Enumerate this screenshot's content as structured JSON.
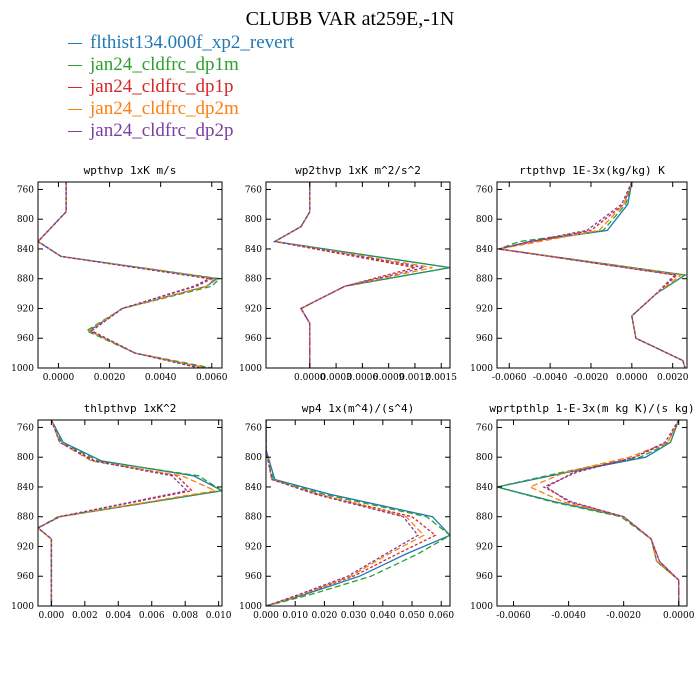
{
  "title": "CLUBB VAR at259E,-1N",
  "legend": [
    {
      "name": "flthist134.000f_xp2_revert",
      "color": "#1f77b4"
    },
    {
      "name": "jan24_cldfrc_dp1m",
      "color": "#2ca02c"
    },
    {
      "name": "jan24_cldfrc_dp1p",
      "color": "#d62728"
    },
    {
      "name": "jan24_cldfrc_dp2m",
      "color": "#ff7f0e"
    },
    {
      "name": "jan24_cldfrc_dp2p",
      "color": "#7b3fa0"
    }
  ],
  "chart_data": [
    {
      "type": "line",
      "title": "wpthvp  1xK m/s",
      "xlim": [
        -0.0008,
        0.0064
      ],
      "ylim": [
        1000,
        750
      ],
      "xticks": [
        0.0,
        0.002,
        0.004,
        0.006
      ],
      "xticklabels": [
        "0.0000",
        "0.0020",
        "0.0040",
        "0.0060"
      ],
      "yticks": [
        760,
        800,
        840,
        880,
        920,
        960,
        1000
      ],
      "y": [
        750,
        790,
        830,
        850,
        880,
        890,
        920,
        950,
        980,
        1000
      ],
      "series": [
        {
          "values": [
            0.0003,
            0.0003,
            -0.0008,
            0.0001,
            0.0062,
            0.0058,
            0.0025,
            0.0012,
            0.003,
            0.0058
          ]
        },
        {
          "values": [
            0.0003,
            0.0003,
            -0.0008,
            0.0001,
            0.0063,
            0.006,
            0.0025,
            0.0011,
            0.003,
            0.006
          ]
        },
        {
          "values": [
            0.0003,
            0.0003,
            -0.0008,
            0.0001,
            0.006,
            0.0054,
            0.0025,
            0.0013,
            0.003,
            0.0056
          ]
        },
        {
          "values": [
            0.0003,
            0.0003,
            -0.0008,
            0.0001,
            0.0061,
            0.0058,
            0.0025,
            0.0012,
            0.003,
            0.0058
          ]
        },
        {
          "values": [
            0.0003,
            0.0003,
            -0.0008,
            0.0001,
            0.0059,
            0.0053,
            0.0025,
            0.0013,
            0.003,
            0.0055
          ]
        }
      ]
    },
    {
      "type": "line",
      "title": "wp2thvp  1xK m^2/s^2",
      "xlim": [
        -0.0005,
        0.0016
      ],
      "ylim": [
        1000,
        750
      ],
      "xticks": [
        0.0,
        0.0003,
        0.0006,
        0.0009,
        0.0012,
        0.0015
      ],
      "xticklabels": [
        "0.0000",
        "0.0003",
        "0.0006",
        "0.0009",
        "0.0012",
        "0.0015"
      ],
      "yticks": [
        760,
        800,
        840,
        880,
        920,
        960,
        1000
      ],
      "y": [
        750,
        790,
        810,
        830,
        865,
        890,
        920,
        940,
        1000
      ],
      "series": [
        {
          "values": [
            0.0,
            0.0,
            -0.0001,
            -0.0004,
            0.0016,
            0.0004,
            -0.0001,
            0.0,
            0.0
          ]
        },
        {
          "values": [
            0.0,
            0.0,
            -0.0001,
            -0.0004,
            0.0016,
            0.0004,
            -0.0001,
            0.0,
            0.0
          ]
        },
        {
          "values": [
            0.0,
            0.0,
            -0.0001,
            -0.0004,
            0.0012,
            0.0004,
            -0.0001,
            0.0,
            0.0
          ]
        },
        {
          "values": [
            0.0,
            0.0,
            -0.0001,
            -0.0004,
            0.0014,
            0.0004,
            -0.0001,
            0.0,
            0.0
          ]
        },
        {
          "values": [
            0.0,
            0.0,
            -0.0001,
            -0.0004,
            0.0013,
            0.0004,
            -0.0001,
            0.0,
            0.0
          ]
        }
      ]
    },
    {
      "type": "line",
      "title": "rtpthvp  1E-3x(kg/kg) K",
      "xlim": [
        -0.0066,
        0.0027
      ],
      "ylim": [
        1000,
        750
      ],
      "xticks": [
        -0.006,
        -0.004,
        -0.002,
        0.0,
        0.002
      ],
      "xticklabels": [
        "-0.0060",
        "-0.0040",
        "-0.0020",
        "0.0000",
        "0.0020"
      ],
      "yticks": [
        760,
        800,
        840,
        880,
        920,
        960,
        1000
      ],
      "y": [
        750,
        780,
        815,
        830,
        840,
        875,
        900,
        930,
        960,
        990,
        1000
      ],
      "series": [
        {
          "values": [
            0.0,
            -0.0002,
            -0.0012,
            -0.005,
            -0.0065,
            0.0026,
            0.0012,
            0.0,
            0.0002,
            0.0025,
            0.0026
          ]
        },
        {
          "values": [
            0.0,
            -0.0003,
            -0.0014,
            -0.0055,
            -0.0065,
            0.0026,
            0.0012,
            0.0,
            0.0002,
            0.0025,
            0.0026
          ]
        },
        {
          "values": [
            0.0,
            -0.0004,
            -0.002,
            -0.0048,
            -0.0065,
            0.0022,
            0.0012,
            0.0,
            0.0002,
            0.0025,
            0.0026
          ]
        },
        {
          "values": [
            0.0,
            -0.0004,
            -0.0016,
            -0.0045,
            -0.0065,
            0.0024,
            0.0012,
            0.0,
            0.0002,
            0.0025,
            0.0026
          ]
        },
        {
          "values": [
            0.0,
            -0.0005,
            -0.0022,
            -0.005,
            -0.0065,
            0.0021,
            0.0012,
            0.0,
            0.0002,
            0.0025,
            0.0026
          ]
        }
      ]
    },
    {
      "type": "line",
      "title": "thlpthvp  1xK^2",
      "xlim": [
        -0.0008,
        0.0102
      ],
      "ylim": [
        1000,
        750
      ],
      "xticks": [
        0.0,
        0.002,
        0.004,
        0.006,
        0.008,
        0.01
      ],
      "xticklabels": [
        "0.000",
        "0.002",
        "0.004",
        "0.006",
        "0.008",
        "0.010"
      ],
      "yticks": [
        760,
        800,
        840,
        880,
        920,
        960,
        1000
      ],
      "y": [
        750,
        780,
        805,
        825,
        845,
        880,
        895,
        910,
        960,
        1000
      ],
      "series": [
        {
          "values": [
            0.0,
            0.0007,
            0.003,
            0.0085,
            0.0102,
            0.0005,
            -0.0008,
            0.0,
            0.0,
            0.0
          ]
        },
        {
          "values": [
            0.0,
            0.0006,
            0.0028,
            0.0088,
            0.0102,
            0.0004,
            -0.0008,
            0.0,
            0.0,
            0.0
          ]
        },
        {
          "values": [
            0.0,
            0.0005,
            0.0026,
            0.0075,
            0.0084,
            0.0005,
            -0.0008,
            0.0,
            0.0,
            0.0
          ]
        },
        {
          "values": [
            0.0,
            0.0005,
            0.0024,
            0.0078,
            0.0098,
            0.0005,
            -0.0008,
            0.0,
            0.0,
            0.0
          ]
        },
        {
          "values": [
            0.0,
            0.0005,
            0.0025,
            0.0072,
            0.0081,
            0.0005,
            -0.0008,
            0.0,
            0.0,
            0.0
          ]
        }
      ]
    },
    {
      "type": "line",
      "title": "wp4  1x(m^4)/(s^4)",
      "xlim": [
        0.0,
        0.063
      ],
      "ylim": [
        1000,
        750
      ],
      "xticks": [
        0.0,
        0.01,
        0.02,
        0.03,
        0.04,
        0.05,
        0.06
      ],
      "xticklabels": [
        "0.000",
        "0.010",
        "0.020",
        "0.030",
        "0.040",
        "0.050",
        "0.060"
      ],
      "yticks": [
        760,
        800,
        840,
        880,
        920,
        960,
        1000
      ],
      "y": [
        750,
        790,
        830,
        850,
        880,
        905,
        930,
        960,
        985,
        1000
      ],
      "series": [
        {
          "values": [
            0.0,
            0.0,
            0.003,
            0.022,
            0.057,
            0.063,
            0.048,
            0.032,
            0.013,
            0.0
          ]
        },
        {
          "values": [
            0.0,
            0.0,
            0.0025,
            0.02,
            0.055,
            0.063,
            0.052,
            0.036,
            0.015,
            0.0
          ]
        },
        {
          "values": [
            0.0,
            0.0,
            0.002,
            0.018,
            0.05,
            0.058,
            0.045,
            0.03,
            0.012,
            0.0
          ]
        },
        {
          "values": [
            0.0,
            0.0,
            0.002,
            0.018,
            0.048,
            0.054,
            0.042,
            0.029,
            0.012,
            0.0
          ]
        },
        {
          "values": [
            0.0,
            0.0,
            0.002,
            0.017,
            0.047,
            0.052,
            0.041,
            0.028,
            0.011,
            0.0
          ]
        }
      ]
    },
    {
      "type": "line",
      "title": "wprtpthlp  1-E-3x(m kg K)/(s kg)",
      "xlim": [
        -0.0066,
        0.0003
      ],
      "ylim": [
        1000,
        750
      ],
      "xticks": [
        -0.006,
        -0.004,
        -0.002,
        0.0
      ],
      "xticklabels": [
        "-0.0060",
        "-0.0040",
        "-0.0020",
        "0.0000"
      ],
      "yticks": [
        760,
        800,
        840,
        880,
        920,
        960,
        1000
      ],
      "y": [
        750,
        780,
        800,
        820,
        840,
        860,
        880,
        910,
        940,
        965,
        1000
      ],
      "series": [
        {
          "values": [
            0.0,
            -0.0003,
            -0.0012,
            -0.004,
            -0.0066,
            -0.0045,
            -0.002,
            -0.001,
            -0.0008,
            0.0,
            0.0
          ]
        },
        {
          "values": [
            0.0,
            -0.0003,
            -0.0014,
            -0.0042,
            -0.0066,
            -0.0046,
            -0.0021,
            -0.001,
            -0.0008,
            0.0,
            0.0
          ]
        },
        {
          "values": [
            0.0,
            -0.0004,
            -0.0016,
            -0.0038,
            -0.0048,
            -0.004,
            -0.002,
            -0.001,
            -0.0007,
            0.0,
            0.0
          ]
        },
        {
          "values": [
            0.0,
            -0.0004,
            -0.0018,
            -0.0041,
            -0.0054,
            -0.0042,
            -0.002,
            -0.001,
            -0.0008,
            0.0,
            0.0
          ]
        },
        {
          "values": [
            0.0,
            -0.0005,
            -0.0016,
            -0.0037,
            -0.0049,
            -0.0039,
            -0.002,
            -0.001,
            -0.0007,
            0.0,
            0.0
          ]
        }
      ]
    }
  ]
}
